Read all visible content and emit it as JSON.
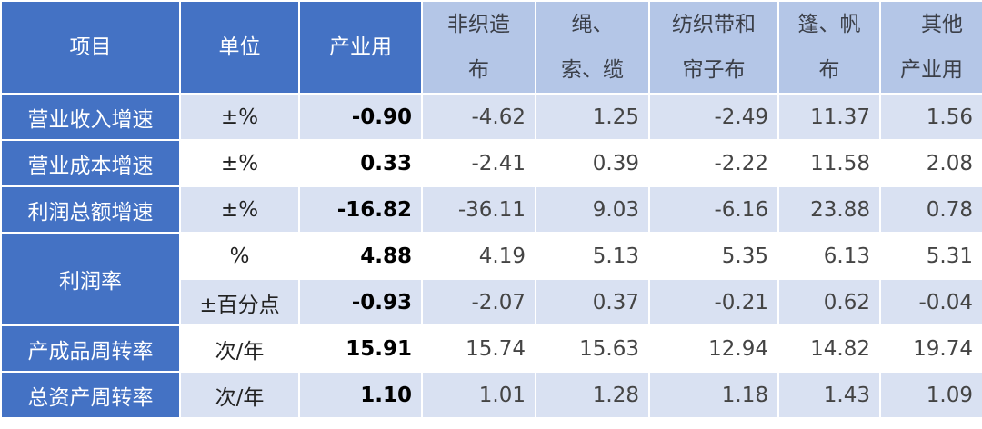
{
  "headers": [
    "项目",
    "单位",
    "产业用",
    "非织造布",
    "绳、索、缆",
    "纺织带和帘子布",
    "篷、帆布",
    "其他产业用"
  ],
  "header_lines": [
    [
      "项目"
    ],
    [
      "单位"
    ],
    [
      "产业用"
    ],
    [
      "非织造",
      "布"
    ],
    [
      "绳、",
      "索、缆"
    ],
    [
      "纺织带和",
      "帘子布"
    ],
    [
      "篷、帆",
      "布"
    ],
    [
      "其他",
      "产业用"
    ]
  ],
  "rows": [
    {
      "item": "营业收入增速",
      "unit": "±%",
      "values": [
        "-0.90",
        "-4.62",
        "1.25",
        "-2.49",
        "11.37",
        "1.56"
      ]
    },
    {
      "item": "营业成本增速",
      "unit": "±%",
      "values": [
        "0.33",
        "-2.41",
        "0.39",
        "-2.22",
        "11.58",
        "2.08"
      ]
    },
    {
      "item": "利润总额增速",
      "unit": "±%",
      "values": [
        "-16.82",
        "-36.11",
        "9.03",
        "-6.16",
        "23.88",
        "0.78"
      ]
    },
    {
      "item": "利润率",
      "unit": "%",
      "values": [
        "4.88",
        "4.19",
        "5.13",
        "5.35",
        "6.13",
        "5.31"
      ]
    },
    {
      "item": "利润率",
      "unit": "±百分点",
      "values": [
        "-0.93",
        "-2.07",
        "0.37",
        "-0.21",
        "0.62",
        "-0.04"
      ]
    },
    {
      "item": "产成品周转率",
      "unit": "次/年",
      "values": [
        "15.91",
        "15.74",
        "15.63",
        "12.94",
        "14.82",
        "19.74"
      ]
    },
    {
      "item": "总资产周转率",
      "unit": "次/年",
      "values": [
        "1.10",
        "1.01",
        "1.28",
        "1.18",
        "1.43",
        "1.09"
      ]
    }
  ],
  "colors": {
    "header_dark": "#4472c4",
    "header_light": "#b4c6e7",
    "row_light": "#d9e1f2"
  }
}
